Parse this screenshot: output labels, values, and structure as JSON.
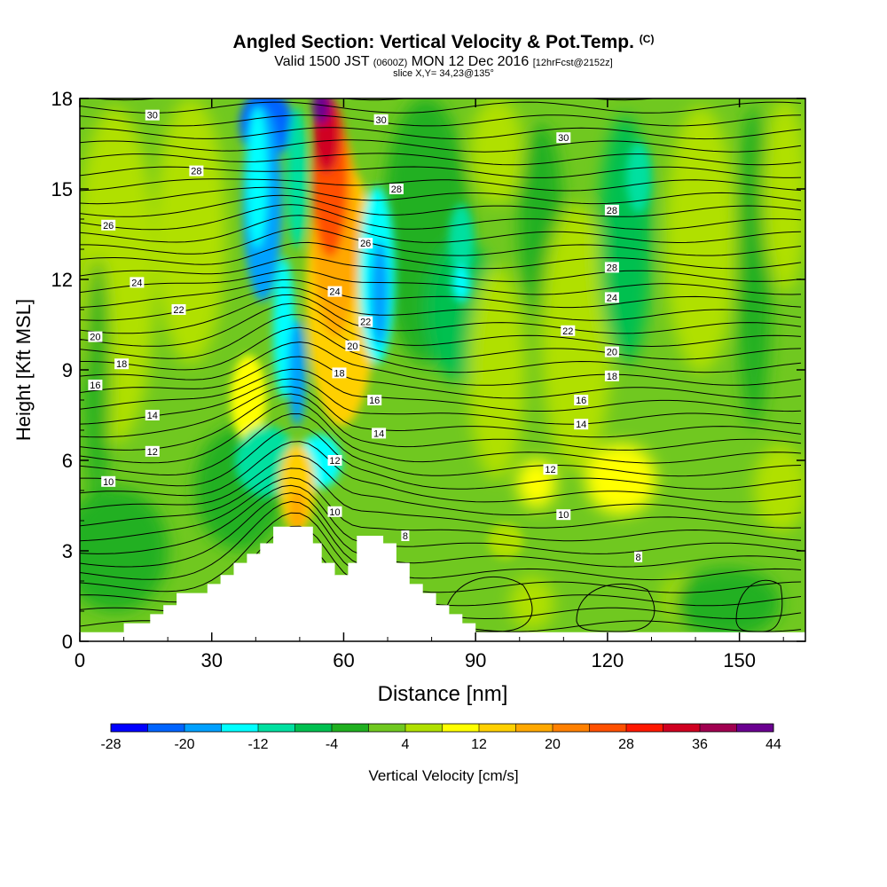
{
  "title": {
    "main": "Angled Section: Vertical Velocity & Pot.Temp.",
    "copyright": "(C)",
    "valid_prefix": "Valid 1500 JST",
    "utc": "(0600Z)",
    "valid_date": "MON 12 Dec 2016",
    "forecast": "[12hrFcst@2152z]",
    "slice": "slice X,Y= 34,23@135°"
  },
  "chart_data": {
    "type": "heatmap",
    "xlabel": "Distance [nm]",
    "ylabel": "Height [Kft MSL]",
    "xlim": [
      0,
      165
    ],
    "ylim": [
      0,
      18
    ],
    "xticks": [
      0,
      30,
      60,
      90,
      120,
      150
    ],
    "yticks": [
      0,
      3,
      6,
      9,
      12,
      15,
      18
    ],
    "colorbar": {
      "label": "Vertical Velocity [cm/s]",
      "tick_labels": [
        "-28",
        "-20",
        "-12",
        "-4",
        "4",
        "12",
        "20",
        "28",
        "36",
        "44"
      ],
      "levels": [
        -28,
        -24,
        -20,
        -16,
        -12,
        -8,
        -4,
        0,
        4,
        8,
        12,
        16,
        20,
        24,
        28,
        32,
        36,
        40,
        44
      ],
      "colors": [
        "#0000ff",
        "#0064ff",
        "#00a0ff",
        "#00ffff",
        "#00e0a0",
        "#00c050",
        "#20b020",
        "#70c820",
        "#b0e000",
        "#ffff00",
        "#ffd000",
        "#ffa800",
        "#ff8000",
        "#ff5000",
        "#ff1800",
        "#d00020",
        "#a00050",
        "#6a0090"
      ]
    },
    "contour_labels": [
      {
        "text": "30",
        "x": 16.5,
        "y": 17.45
      },
      {
        "text": "30",
        "x": 68.5,
        "y": 17.3
      },
      {
        "text": "30",
        "x": 110,
        "y": 16.7
      },
      {
        "text": "28",
        "x": 26.5,
        "y": 15.6
      },
      {
        "text": "28",
        "x": 72,
        "y": 15.0
      },
      {
        "text": "28",
        "x": 121,
        "y": 14.3
      },
      {
        "text": "28",
        "x": 121,
        "y": 12.4
      },
      {
        "text": "26",
        "x": 6.5,
        "y": 13.8
      },
      {
        "text": "26",
        "x": 65,
        "y": 13.2
      },
      {
        "text": "24",
        "x": 13,
        "y": 11.9
      },
      {
        "text": "24",
        "x": 58,
        "y": 11.6
      },
      {
        "text": "24",
        "x": 121,
        "y": 11.4
      },
      {
        "text": "22",
        "x": 22.5,
        "y": 11.0
      },
      {
        "text": "22",
        "x": 65,
        "y": 10.6
      },
      {
        "text": "22",
        "x": 111,
        "y": 10.3
      },
      {
        "text": "20",
        "x": 3.5,
        "y": 10.1
      },
      {
        "text": "20",
        "x": 62,
        "y": 9.8
      },
      {
        "text": "20",
        "x": 121,
        "y": 9.6
      },
      {
        "text": "18",
        "x": 9.5,
        "y": 9.2
      },
      {
        "text": "18",
        "x": 59,
        "y": 8.9
      },
      {
        "text": "18",
        "x": 121,
        "y": 8.8
      },
      {
        "text": "16",
        "x": 3.5,
        "y": 8.5
      },
      {
        "text": "16",
        "x": 67,
        "y": 8.0
      },
      {
        "text": "16",
        "x": 114,
        "y": 8.0
      },
      {
        "text": "14",
        "x": 16.5,
        "y": 7.5
      },
      {
        "text": "14",
        "x": 68,
        "y": 6.9
      },
      {
        "text": "14",
        "x": 114,
        "y": 7.2
      },
      {
        "text": "12",
        "x": 16.5,
        "y": 6.3
      },
      {
        "text": "12",
        "x": 58,
        "y": 6.0
      },
      {
        "text": "12",
        "x": 107,
        "y": 5.7
      },
      {
        "text": "10",
        "x": 6.5,
        "y": 5.3
      },
      {
        "text": "10",
        "x": 58,
        "y": 4.3
      },
      {
        "text": "10",
        "x": 110,
        "y": 4.2
      },
      {
        "text": "8",
        "x": 74,
        "y": 3.5
      },
      {
        "text": "8",
        "x": 127,
        "y": 2.8
      }
    ],
    "terrain": [
      [
        10,
        0.3
      ],
      [
        10,
        0.6
      ],
      [
        16,
        0.6
      ],
      [
        16,
        0.9
      ],
      [
        19,
        0.9
      ],
      [
        19,
        1.2
      ],
      [
        22,
        1.2
      ],
      [
        22,
        1.6
      ],
      [
        29,
        1.6
      ],
      [
        29,
        1.9
      ],
      [
        32,
        1.9
      ],
      [
        32,
        2.2
      ],
      [
        35,
        2.2
      ],
      [
        35,
        2.6
      ],
      [
        38,
        2.6
      ],
      [
        38,
        2.9
      ],
      [
        41,
        2.9
      ],
      [
        41,
        3.25
      ],
      [
        44,
        3.25
      ],
      [
        44,
        3.8
      ],
      [
        53,
        3.8
      ],
      [
        53,
        3.25
      ],
      [
        55,
        3.25
      ],
      [
        55,
        2.6
      ],
      [
        58,
        2.6
      ],
      [
        58,
        2.2
      ],
      [
        61,
        2.2
      ],
      [
        61,
        2.6
      ],
      [
        63,
        2.6
      ],
      [
        63,
        3.5
      ],
      [
        69,
        3.5
      ],
      [
        69,
        3.25
      ],
      [
        72,
        3.25
      ],
      [
        72,
        2.6
      ],
      [
        75,
        2.6
      ],
      [
        75,
        1.9
      ],
      [
        78,
        1.9
      ],
      [
        78,
        1.6
      ],
      [
        81,
        1.6
      ],
      [
        81,
        1.2
      ],
      [
        84,
        1.2
      ],
      [
        84,
        0.9
      ],
      [
        87,
        0.9
      ],
      [
        87,
        0.6
      ],
      [
        90,
        0.6
      ],
      [
        90,
        0.3
      ]
    ]
  }
}
